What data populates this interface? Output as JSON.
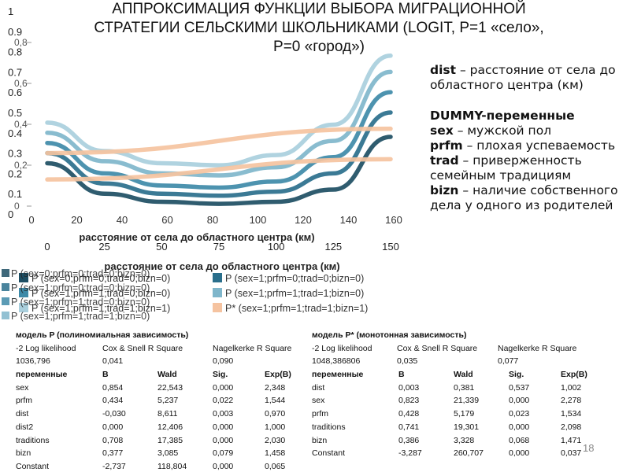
{
  "title": "АППРОКСИМАЦИЯ ФУНКЦИИ ВЫБОРА МИГРАЦИОННОЙ СТРАТЕГИИ СЕЛЬСКИМИ ШКОЛЬНИКАМИ (LOGIT, P=1 «село», P=0 «город»)",
  "title_lines": [
    "АППРОКСИМАЦИЯ ФУНКЦИИ ВЫБОРА МИГРАЦИОННОЙ",
    "СТРАТЕГИИ СЕЛЬСКИМИ ШКОЛЬНИКАМИ (LOGIT, P=1 «село»,",
    "P=0 «город»)"
  ],
  "glossary": {
    "dist_term": "dist",
    "dist_desc": "– расстояние от села до областного центра (км)",
    "dummy_heading": "DUMMY-переменные",
    "sex_term": "sex",
    "sex_desc": "– мужской пол",
    "prfm_term": "prfm",
    "prfm_desc": "– плохая успеваемость",
    "trad_term": "trad",
    "trad_desc": "– приверженность семейным традициям",
    "bizn_term": "bizn",
    "bizn_desc": "– наличие собственного дела у одного из родителей"
  },
  "chart_data": {
    "type": "line",
    "xlabel": "расстояние от села до областного центра (км)",
    "x_ticks": [
      "0",
      "25",
      "50",
      "75",
      "100",
      "125",
      "150"
    ],
    "x_ticks_back": [
      "0",
      "20",
      "40",
      "60",
      "80",
      "100",
      "120",
      "140",
      "160"
    ],
    "y_ticks": [
      "0",
      "0.1",
      "0.2",
      "0.3",
      "0.4",
      "0.5",
      "0.6",
      "0.7",
      "0.8",
      "0.9",
      "1"
    ],
    "y_ticks_ghost": [
      "0",
      "0,2",
      "0,4",
      "0,6",
      "0,8"
    ],
    "xlim": [
      0,
      150
    ],
    "ylim": [
      0,
      1
    ],
    "series": [
      {
        "name": "P (sex=0;prfm=0;trad=0;bizn=0)",
        "color": "#1d4e63",
        "x": [
          0,
          25,
          50,
          75,
          100,
          125,
          150
        ],
        "y": [
          0.25,
          0.1,
          0.06,
          0.05,
          0.06,
          0.12,
          0.38
        ]
      },
      {
        "name": "P (sex=1;prfm=0;trad=0;bizn=0)",
        "color": "#2a6f8c",
        "x": [
          0,
          25,
          50,
          75,
          100,
          125,
          150
        ],
        "y": [
          0.3,
          0.15,
          0.1,
          0.09,
          0.11,
          0.2,
          0.5
        ]
      },
      {
        "name": "P (sex=1;prfm=1;trad=0;bizn=0)",
        "color": "#3e8aa8",
        "x": [
          0,
          25,
          50,
          75,
          100,
          125,
          150
        ],
        "y": [
          0.35,
          0.2,
          0.14,
          0.13,
          0.16,
          0.28,
          0.6
        ]
      },
      {
        "name": "P (sex=1;prfm=1;trad=1;bizn=0)",
        "color": "#7fb6cb",
        "x": [
          0,
          25,
          50,
          75,
          100,
          125,
          150
        ],
        "y": [
          0.4,
          0.26,
          0.2,
          0.19,
          0.23,
          0.36,
          0.7
        ]
      },
      {
        "name": "P (sex=1;prfm=1;trad=1;bizn=1)",
        "color": "#a9cfdd",
        "x": [
          0,
          25,
          50,
          75,
          100,
          125,
          150
        ],
        "y": [
          0.45,
          0.31,
          0.25,
          0.24,
          0.29,
          0.44,
          0.78
        ]
      },
      {
        "name": "P* (sex=1;prfm=1;trad=1;bizn=1)",
        "color": "#f5c3a0",
        "x": [
          0,
          150
        ],
        "y": [
          0.3,
          0.42
        ]
      },
      {
        "name": "",
        "color": "#f5c3a0",
        "x": [
          0,
          150
        ],
        "y": [
          0.17,
          0.27
        ]
      }
    ],
    "legend": "bottom",
    "legend_ghost": [
      "P (sex=0;prfm=0;trad=0;bizn=0)",
      "P (sex=1;prfm=0;trad=0;bizn=0)",
      "P (sex=1;prfm=1;trad=0;bizn=0)",
      "P (sex=1;prfm=1;trad=1;bizn=0)"
    ]
  },
  "stats_left": {
    "title": "модель P (полиномиальная зависимость)",
    "fit_headers": [
      "-2 Log likelihood",
      "Cox & Snell R Square",
      "Nagelkerke R Square"
    ],
    "fit_values": [
      "1036,796",
      "0,041",
      "0,090"
    ],
    "headers": [
      "переменные",
      "B",
      "Wald",
      "Sig.",
      "Exp(B)"
    ],
    "rows": [
      [
        "sex",
        "0,854",
        "22,543",
        "0,000",
        "2,348"
      ],
      [
        "prfm",
        "0,434",
        "5,237",
        "0,022",
        "1,544"
      ],
      [
        "dist",
        "-0,030",
        "8,611",
        "0,003",
        "0,970"
      ],
      [
        "dist2",
        "0,000",
        "12,406",
        "0,000",
        "1,000"
      ],
      [
        "traditions",
        "0,708",
        "17,385",
        "0,000",
        "2,030"
      ],
      [
        "bizn",
        "0,377",
        "3,085",
        "0,079",
        "1,458"
      ],
      [
        "Constant",
        "-2,737",
        "118,804",
        "0,000",
        "0,065"
      ]
    ]
  },
  "stats_right": {
    "title": "модель P* (монотонная зависимость)",
    "fit_headers": [
      "-2 Log likelihood",
      "Cox & Snell R Square",
      "Nagelkerke R Square"
    ],
    "fit_values": [
      "1048,386806",
      "0,035",
      "0,077"
    ],
    "headers": [
      "переменные",
      "B",
      "Wald",
      "Sig.",
      "Exp(B)"
    ],
    "rows": [
      [
        "dist",
        "0,003",
        "0,381",
        "0,537",
        "1,002"
      ],
      [
        "sex",
        "0,823",
        "21,339",
        "0,000",
        "2,278"
      ],
      [
        "prfm",
        "0,428",
        "5,179",
        "0,023",
        "1,534"
      ],
      [
        "traditions",
        "0,741",
        "19,301",
        "0,000",
        "2,098"
      ],
      [
        "bizn",
        "0,386",
        "3,328",
        "0,068",
        "1,471"
      ],
      [
        "Constant",
        "-3,287",
        "260,707",
        "0,000",
        "0,037"
      ]
    ]
  },
  "slide_number": "18"
}
